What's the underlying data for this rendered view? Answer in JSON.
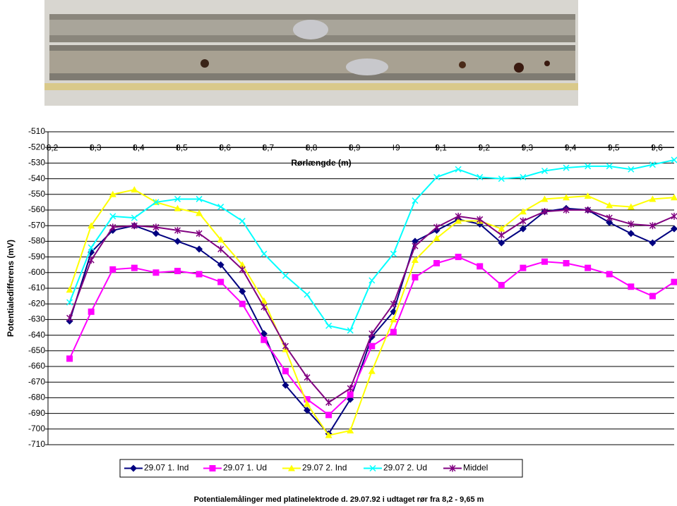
{
  "chart_data": {
    "type": "line",
    "title": "Potentialemålinger med platinelektrode d. 29.07.92 i udtaget rør fra 8,2 - 9,65 m",
    "x_label": "Rørlængde (m)",
    "y_label": "Potentialedifferens (mV)",
    "x": [
      8.25,
      8.3,
      8.35,
      8.4,
      8.45,
      8.5,
      8.55,
      8.6,
      8.65,
      8.7,
      8.75,
      8.8,
      8.85,
      8.9,
      8.95,
      9.0,
      9.05,
      9.1,
      9.15,
      9.2,
      9.25,
      9.3,
      9.35,
      9.4,
      9.45,
      9.5,
      9.55,
      9.6,
      9.65
    ],
    "series": [
      {
        "name": "29.07 1. Ind",
        "color": "#000080",
        "marker": "diamond",
        "values": [
          -631,
          -587,
          -573,
          -570,
          -575,
          -580,
          -585,
          -595,
          -612,
          -639,
          -672,
          -688,
          -703,
          -681,
          -641,
          -625,
          -580,
          -573,
          -566,
          -569,
          -581,
          -572,
          -561,
          -559,
          -560,
          -568,
          -575,
          -581,
          -572
        ]
      },
      {
        "name": "29.07 1. Ud",
        "color": "#ff00ff",
        "marker": "square",
        "values": [
          -655,
          -625,
          -598,
          -597,
          -600,
          -599,
          -601,
          -606,
          -620,
          -643,
          -663,
          -681,
          -691,
          -678,
          -647,
          -638,
          -603,
          -594,
          -590,
          -596,
          -608,
          -597,
          -593,
          -594,
          -597,
          -601,
          -609,
          -615,
          -606
        ]
      },
      {
        "name": "29.07 2. Ind",
        "color": "#ffff00",
        "marker": "triangle",
        "values": [
          -611,
          -570,
          -550,
          -547,
          -555,
          -559,
          -562,
          -579,
          -595,
          -618,
          -649,
          -684,
          -704,
          -701,
          -663,
          -630,
          -592,
          -578,
          -567,
          -567,
          -572,
          -561,
          -553,
          -552,
          -551,
          -557,
          -558,
          -553,
          -552
        ]
      },
      {
        "name": "29.07 2. Ud",
        "color": "#00ffff",
        "marker": "x",
        "values": [
          -619,
          -584,
          -564,
          -565,
          -555,
          -553,
          -553,
          -558,
          -567,
          -588,
          -602,
          -614,
          -634,
          -637,
          -605,
          -588,
          -554,
          -539,
          -534,
          -539,
          -540,
          -539,
          -535,
          -533,
          -532,
          -532,
          -534,
          -531,
          -528
        ]
      },
      {
        "name": "Middel",
        "color": "#800080",
        "marker": "asterisk",
        "values": [
          -629,
          -592,
          -571,
          -570,
          -571,
          -573,
          -575,
          -585,
          -598,
          -622,
          -647,
          -667,
          -683,
          -674,
          -639,
          -620,
          -583,
          -571,
          -564,
          -566,
          -576,
          -567,
          -561,
          -560,
          -560,
          -565,
          -569,
          -570,
          -564
        ]
      }
    ],
    "xlim": [
      8.2,
      9.65
    ],
    "ylim": [
      -710,
      -510
    ],
    "x_axis_crosses": -520,
    "xticks": [
      {
        "value": 8.2,
        "label": "8,2"
      },
      {
        "value": 8.3,
        "label": "8,3"
      },
      {
        "value": 8.4,
        "label": "8,4"
      },
      {
        "value": 8.5,
        "label": "8,5"
      },
      {
        "value": 8.6,
        "label": "8,6"
      },
      {
        "value": 8.7,
        "label": "8,7"
      },
      {
        "value": 8.8,
        "label": "8,8"
      },
      {
        "value": 8.9,
        "label": "8,9"
      },
      9,
      {
        "value": 9.1,
        "label": "9,1"
      },
      {
        "value": 9.2,
        "label": "9,2"
      },
      {
        "value": 9.3,
        "label": "9,3"
      },
      {
        "value": 9.4,
        "label": "9,4"
      },
      {
        "value": 9.5,
        "label": "9,5"
      },
      {
        "value": 9.6,
        "label": "9,6"
      }
    ],
    "yticks": [
      -510,
      -520,
      -530,
      -540,
      -550,
      -560,
      -570,
      -580,
      -590,
      -600,
      -610,
      -620,
      -630,
      -640,
      -650,
      -660,
      -670,
      -680,
      -690,
      -700,
      -710
    ],
    "grid": true,
    "legend": "bottom"
  }
}
